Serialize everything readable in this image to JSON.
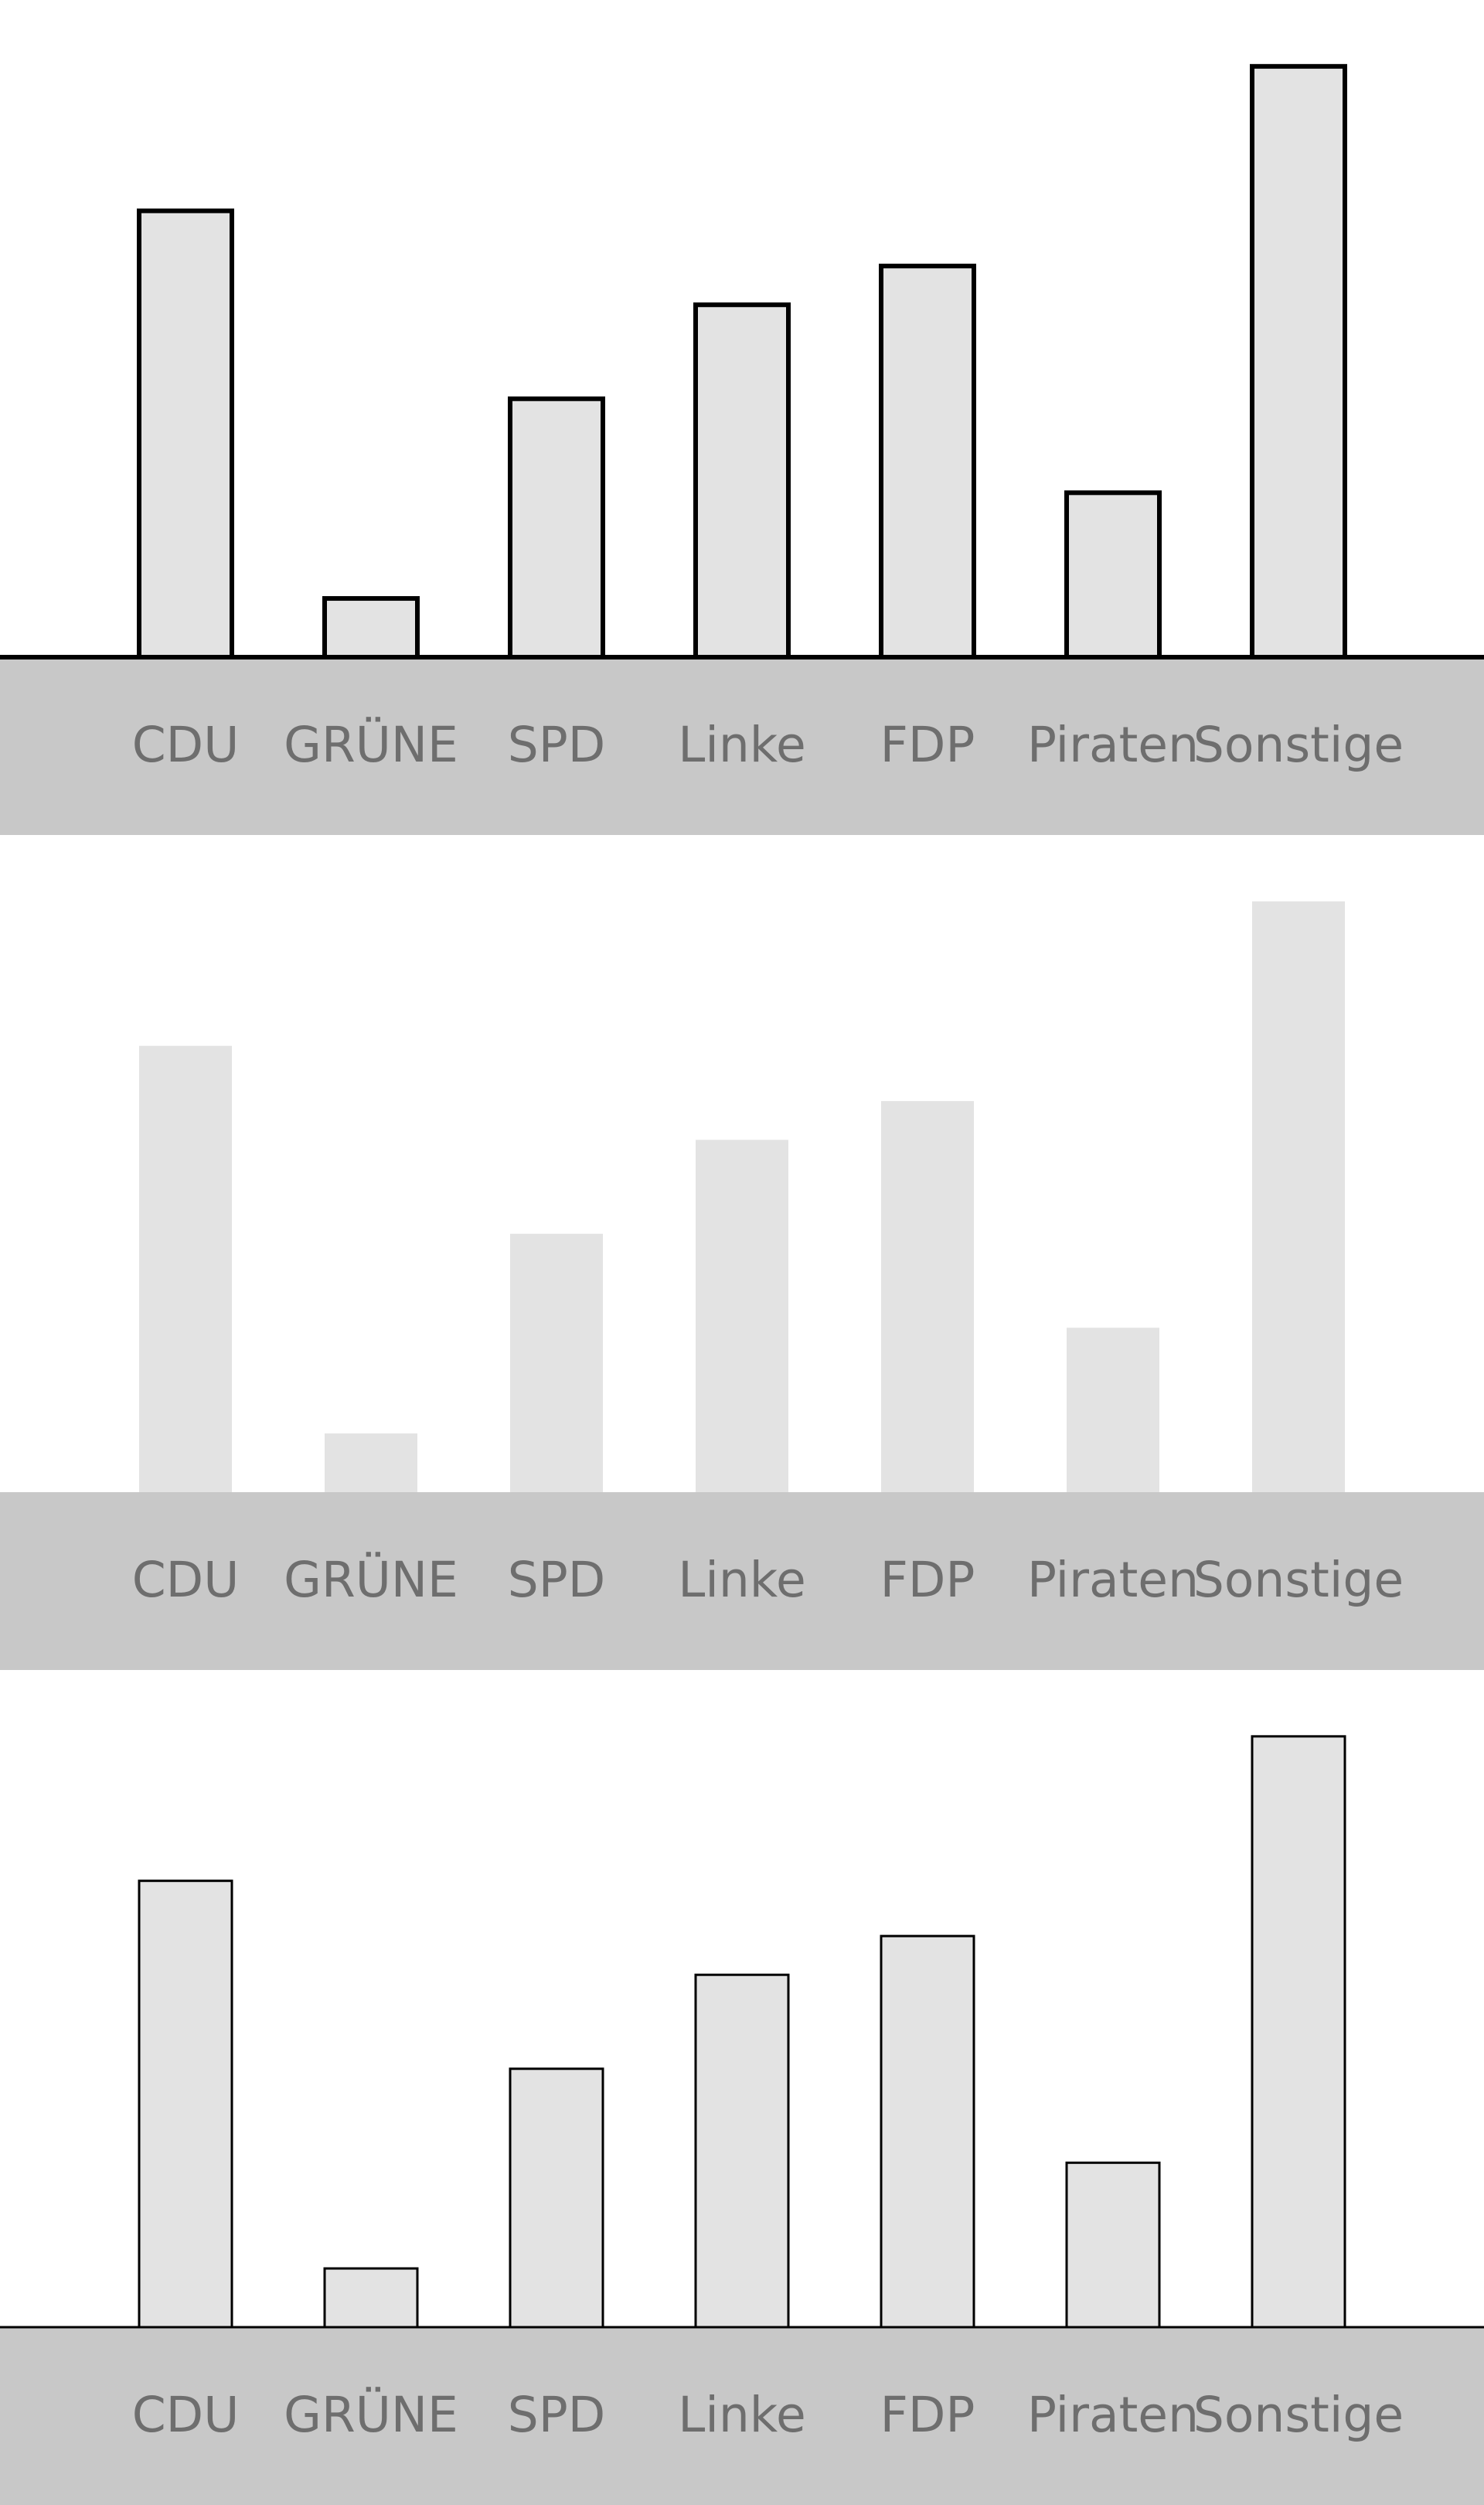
{
  "chart_data": [
    {
      "type": "bar",
      "categories": [
        "CDU",
        "GRÜNE",
        "SPD",
        "Linke",
        "FDP",
        "Piraten",
        "Sonstige"
      ],
      "values": [
        38,
        5,
        22,
        30,
        33.3,
        14,
        50.3
      ],
      "ylim": [
        0,
        52
      ],
      "title": "",
      "xlabel": "",
      "ylabel": "",
      "grid": false,
      "bar_fill": "#e3e3e3",
      "bar_stroke": "#000000",
      "bar_outline": "thick",
      "axis_band_color": "#c8c8c8",
      "label_color": "#6e6e6e"
    },
    {
      "type": "bar",
      "categories": [
        "CDU",
        "GRÜNE",
        "SPD",
        "Linke",
        "FDP",
        "Piraten",
        "Sonstige"
      ],
      "values": [
        38,
        5,
        22,
        30,
        33.3,
        14,
        50.3
      ],
      "ylim": [
        0,
        52
      ],
      "title": "",
      "xlabel": "",
      "ylabel": "",
      "grid": false,
      "bar_fill": "#e3e3e3",
      "bar_stroke": "none",
      "bar_outline": "none",
      "axis_band_color": "#c8c8c8",
      "label_color": "#6e6e6e"
    },
    {
      "type": "bar",
      "categories": [
        "CDU",
        "GRÜNE",
        "SPD",
        "Linke",
        "FDP",
        "Piraten",
        "Sonstige"
      ],
      "values": [
        38,
        5,
        22,
        30,
        33.3,
        14,
        50.3
      ],
      "ylim": [
        0,
        52
      ],
      "title": "",
      "xlabel": "",
      "ylabel": "",
      "grid": false,
      "bar_fill": "#e3e3e3",
      "bar_stroke": "#000000",
      "bar_outline": "thin",
      "axis_band_color": "#c8c8c8",
      "label_color": "#6e6e6e"
    }
  ]
}
